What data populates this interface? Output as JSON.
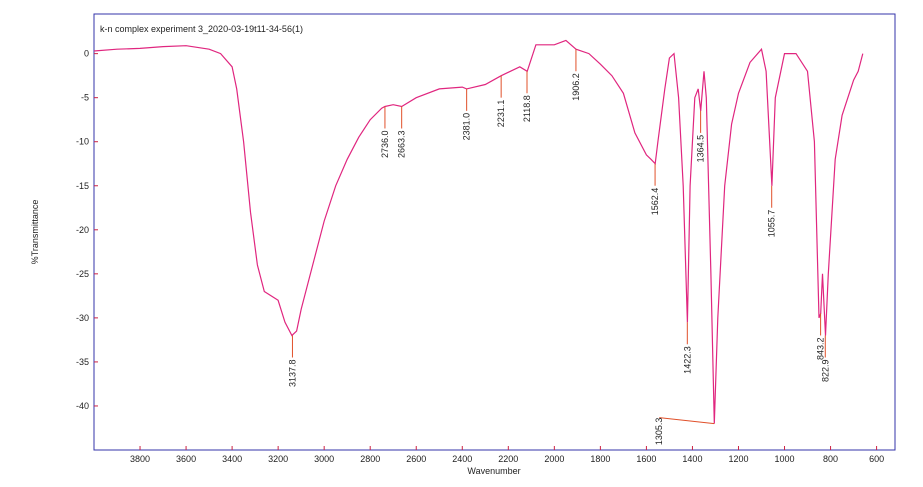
{
  "chart_data": {
    "type": "line",
    "title": "k-n complex experiment 3_2020-03-19t11-34-56(1)",
    "x_label": "Wavenumber",
    "y_label": "%Transmittance",
    "color": "#e0267f",
    "frame_color": "#3333aa",
    "annotation_color": "#e0502a",
    "xlim": [
      4000,
      520
    ],
    "ylim": [
      -45,
      4.5
    ],
    "xticks": [
      3800,
      3600,
      3400,
      3200,
      3000,
      2800,
      2600,
      2400,
      2200,
      2000,
      1800,
      1600,
      1400,
      1200,
      1000,
      800,
      600
    ],
    "yticks": [
      0,
      -5,
      -10,
      -15,
      -20,
      -25,
      -30,
      -35,
      -40
    ],
    "x": [
      4000,
      3900,
      3800,
      3700,
      3600,
      3500,
      3450,
      3400,
      3380,
      3350,
      3320,
      3290,
      3260,
      3230,
      3200,
      3170,
      3140,
      3120,
      3100,
      3050,
      3000,
      2950,
      2900,
      2850,
      2800,
      2750,
      2736,
      2700,
      2663,
      2600,
      2500,
      2400,
      2381,
      2300,
      2231,
      2150,
      2118,
      2080,
      2000,
      1950,
      1906,
      1850,
      1800,
      1750,
      1700,
      1650,
      1600,
      1580,
      1562,
      1550,
      1520,
      1500,
      1480,
      1460,
      1440,
      1422,
      1410,
      1390,
      1375,
      1364,
      1350,
      1340,
      1320,
      1305,
      1290,
      1260,
      1230,
      1200,
      1150,
      1100,
      1080,
      1055,
      1040,
      1000,
      950,
      900,
      870,
      850,
      843,
      835,
      822,
      810,
      780,
      750,
      700,
      680,
      660
    ],
    "values": [
      0.3,
      0.5,
      0.6,
      0.8,
      0.9,
      0.5,
      0,
      -1.5,
      -4,
      -10,
      -18,
      -24,
      -27,
      -27.5,
      -28,
      -30.5,
      -32,
      -31.5,
      -29,
      -24,
      -19,
      -15,
      -12,
      -9.5,
      -7.5,
      -6.2,
      -6,
      -5.8,
      -6,
      -5,
      -4,
      -3.8,
      -4,
      -3.5,
      -2.5,
      -1.5,
      -2,
      1,
      1,
      1.5,
      0.5,
      0,
      -1.2,
      -2.5,
      -4.5,
      -9,
      -11.5,
      -12,
      -12.5,
      -10,
      -4,
      -0.5,
      0,
      -5,
      -15,
      -30.5,
      -15,
      -5,
      -4,
      -6.5,
      -2,
      -5,
      -25,
      -42,
      -30,
      -15,
      -8,
      -4.5,
      -1,
      0.5,
      -2,
      -15,
      -5,
      0,
      0,
      -2,
      -10,
      -30,
      -29.5,
      -25,
      -32,
      -25,
      -12,
      -7,
      -3,
      -2,
      0
    ],
    "annotations": [
      {
        "label": "3137.8",
        "x": 3137.8,
        "y": -32
      },
      {
        "label": "2736.0",
        "x": 2736.0,
        "y": -6
      },
      {
        "label": "2663.3",
        "x": 2663.3,
        "y": -6
      },
      {
        "label": "2381.0",
        "x": 2381.0,
        "y": -4
      },
      {
        "label": "2231.1",
        "x": 2231.1,
        "y": -2.5
      },
      {
        "label": "2118.8",
        "x": 2118.8,
        "y": -2
      },
      {
        "label": "1906.2",
        "x": 1906.2,
        "y": 0.5
      },
      {
        "label": "1562.4",
        "x": 1562.4,
        "y": -12.5
      },
      {
        "label": "1422.3",
        "x": 1422.3,
        "y": -30.5
      },
      {
        "label": "1364.5",
        "x": 1364.5,
        "y": -6.5
      },
      {
        "label": "1305.3",
        "x": 1305.3,
        "y": -42
      },
      {
        "label": "1055.7",
        "x": 1055.7,
        "y": -15
      },
      {
        "label": "843.2",
        "x": 843.2,
        "y": -29.5
      },
      {
        "label": "822.9",
        "x": 822.9,
        "y": -32
      }
    ]
  }
}
